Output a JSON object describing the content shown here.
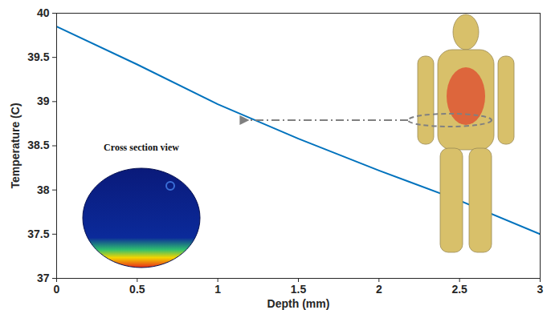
{
  "chart_data": {
    "type": "line",
    "x_label": "Depth (mm)",
    "y_label": "Temperature (C)",
    "annotations": [
      "Cross section view"
    ],
    "x": [
      0,
      0.5,
      1.0,
      1.5,
      2.0,
      2.5,
      3.0
    ],
    "series": [
      {
        "name": "Temperature",
        "color": "#0072bd",
        "values": [
          39.85,
          39.42,
          38.97,
          38.58,
          38.22,
          37.88,
          37.5
        ]
      }
    ],
    "xlim": [
      0,
      3
    ],
    "xticks": [
      0,
      0.5,
      1,
      1.5,
      2,
      2.5,
      3
    ],
    "ylim": [
      37,
      40
    ],
    "yticks": [
      37,
      37.5,
      38,
      38.5,
      39,
      39.5,
      40
    ],
    "grid": false
  }
}
